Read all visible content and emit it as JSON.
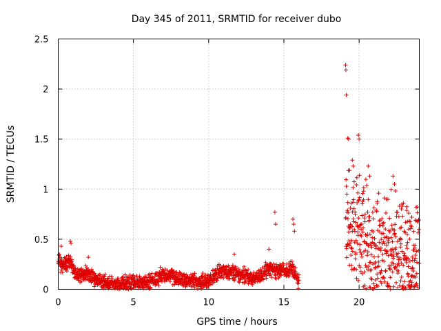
{
  "chart_data": {
    "type": "scatter",
    "title": "Day 345 of 2011, SRMTID for receiver dubo",
    "xlabel": "GPS time / hours",
    "ylabel": "SRMTID / TECUs",
    "xlim": [
      0,
      24
    ],
    "ylim": [
      0,
      2.5
    ],
    "xticks": [
      0,
      5,
      10,
      15,
      20
    ],
    "xtick_labels": [
      "0",
      "5",
      "10",
      "15",
      "20"
    ],
    "yticks": [
      0,
      0.5,
      1,
      1.5,
      2,
      2.5
    ],
    "ytick_labels": [
      "0",
      "0.5",
      "1",
      "1.5",
      "2",
      "2.5"
    ],
    "grid": true,
    "marker": "+",
    "series_color": "#e00000",
    "trend": [
      [
        0.0,
        0.3
      ],
      [
        0.3,
        0.22
      ],
      [
        0.8,
        0.28
      ],
      [
        1.2,
        0.14
      ],
      [
        2.0,
        0.16
      ],
      [
        2.5,
        0.09
      ],
      [
        3.5,
        0.06
      ],
      [
        4.5,
        0.06
      ],
      [
        5.5,
        0.06
      ],
      [
        6.5,
        0.1
      ],
      [
        7.0,
        0.16
      ],
      [
        8.0,
        0.1
      ],
      [
        9.0,
        0.09
      ],
      [
        10.0,
        0.07
      ],
      [
        10.5,
        0.16
      ],
      [
        11.0,
        0.18
      ],
      [
        12.0,
        0.16
      ],
      [
        13.0,
        0.1
      ],
      [
        14.0,
        0.2
      ],
      [
        15.0,
        0.18
      ],
      [
        15.5,
        0.22
      ],
      [
        16.0,
        0.08
      ],
      [
        16.3,
        null
      ],
      [
        19.0,
        null
      ],
      [
        19.1,
        0.75
      ],
      [
        19.6,
        0.6
      ],
      [
        20.0,
        0.62
      ],
      [
        21.0,
        0.4
      ],
      [
        22.0,
        0.42
      ],
      [
        23.0,
        0.35
      ],
      [
        24.0,
        0.3
      ]
    ],
    "spikes": [
      [
        19.1,
        2.24
      ],
      [
        19.12,
        2.19
      ],
      [
        19.15,
        1.94
      ],
      [
        19.25,
        1.51
      ],
      [
        19.3,
        1.5
      ],
      [
        19.55,
        1.29
      ],
      [
        19.6,
        1.23
      ],
      [
        19.95,
        1.54
      ],
      [
        20.0,
        1.5
      ],
      [
        20.6,
        1.23
      ],
      [
        20.7,
        1.13
      ],
      [
        22.25,
        1.13
      ],
      [
        22.35,
        1.05
      ],
      [
        14.4,
        0.77
      ],
      [
        14.45,
        0.65
      ],
      [
        15.6,
        0.7
      ],
      [
        15.65,
        0.65
      ],
      [
        15.7,
        0.58
      ],
      [
        0.8,
        0.48
      ],
      [
        0.85,
        0.46
      ],
      [
        0.2,
        0.43
      ],
      [
        23.3,
        0.76
      ],
      [
        23.5,
        0.72
      ],
      [
        21.2,
        0.86
      ],
      [
        20.3,
        0.98
      ],
      [
        22.8,
        0.62
      ],
      [
        23.2,
        0.55
      ],
      [
        2.0,
        0.32
      ],
      [
        14.0,
        0.4
      ],
      [
        11.7,
        0.35
      ]
    ]
  }
}
